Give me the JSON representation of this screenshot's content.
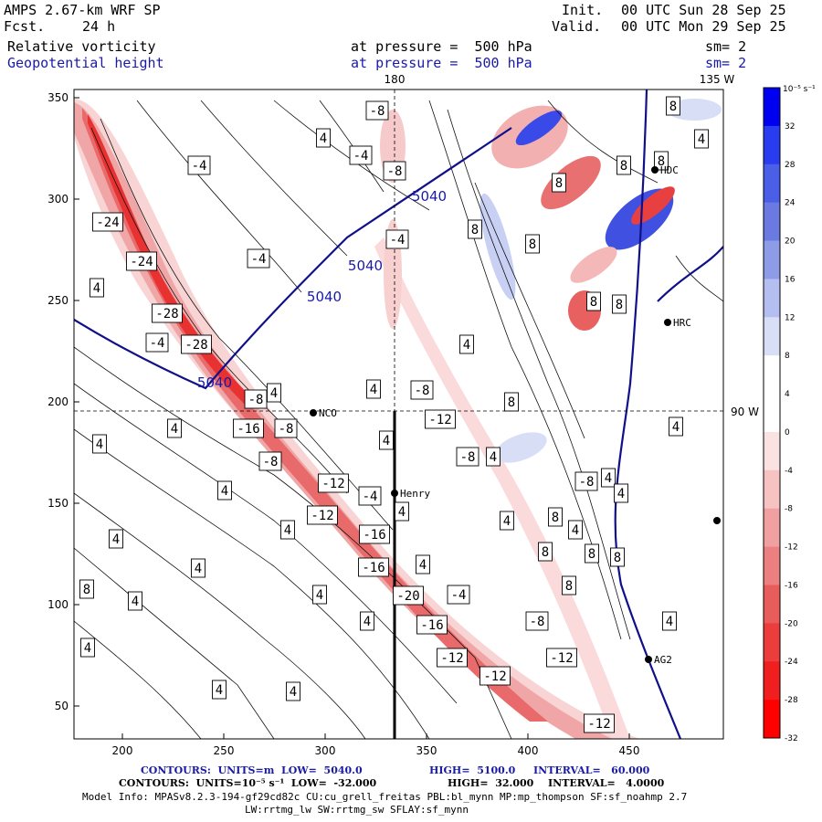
{
  "header": {
    "model": "AMPS 2.67-km WRF SP",
    "fcst_label": "Fcst.",
    "fcst_value": "24 h",
    "init_label": "Init.",
    "init_value": "00 UTC Sun 28 Sep 25",
    "valid_label": "Valid.",
    "valid_value": "00 UTC Mon 29 Sep 25",
    "field1": "Relative vorticity",
    "field2": "Geopotential height",
    "pressure1": "at pressure =  500 hPa",
    "pressure2": "at pressure =  500 hPa",
    "sm1": "sm= 2",
    "sm2": "sm= 2"
  },
  "map": {
    "lon_180": "180",
    "lon_135w": "135 W",
    "lat_90w": "90 W",
    "x_ticks": [
      "200",
      "250",
      "300",
      "350",
      "400",
      "450"
    ],
    "y_ticks": [
      "350",
      "300",
      "250",
      "200",
      "150",
      "100",
      "50"
    ],
    "stations": [
      {
        "name": "NCO"
      },
      {
        "name": "Henry"
      },
      {
        "name": "HRC"
      },
      {
        "name": "HDC"
      },
      {
        "name": "AG2"
      }
    ],
    "height_labels": [
      "5040",
      "5040",
      "5040",
      "5040"
    ],
    "vort_labels": [
      "-24",
      "-24",
      "-28",
      "-28",
      "-4",
      "-4",
      "-4",
      "-4",
      "-8",
      "-8",
      "-8",
      "-8",
      "-8",
      "-8",
      "-8",
      "-8",
      "-12",
      "-12",
      "-12",
      "-12",
      "-12",
      "-12",
      "-16",
      "-16",
      "-16",
      "-16",
      "-20",
      "-4",
      "-4",
      "-4",
      "-8",
      "-12",
      "4",
      "4",
      "4",
      "4",
      "4",
      "4",
      "4",
      "4",
      "4",
      "4",
      "4",
      "4",
      "4",
      "4",
      "4",
      "4",
      "4",
      "4",
      "4",
      "4",
      "4",
      "4",
      "4",
      "4",
      "4",
      "4",
      "4",
      "4",
      "8",
      "8",
      "8",
      "8",
      "8",
      "8",
      "8",
      "8",
      "8",
      "8",
      "8",
      "8",
      "8",
      "8",
      "8"
    ]
  },
  "colorbar": {
    "unit": "10⁻⁵ s⁻¹",
    "labels": [
      "32",
      "28",
      "24",
      "20",
      "16",
      "12",
      "8",
      "4",
      "0",
      "-4",
      "-8",
      "-12",
      "-16",
      "-20",
      "-24",
      "-28",
      "-32"
    ],
    "colors": [
      "#0000f0",
      "#2a3cf0",
      "#4a5ee8",
      "#6a7ae0",
      "#8e9ce8",
      "#b4bef0",
      "#d8def6",
      "#ffffff",
      "#ffffff",
      "#fbe2e2",
      "#f6c2c2",
      "#f0a0a0",
      "#ec8080",
      "#e85c5c",
      "#ec3c3c",
      "#f01e1e",
      "#ff0000"
    ]
  },
  "footer": {
    "line1_a": "CONTOURS:  UNITS=m  LOW=  5040.0",
    "line1_b": "HIGH=  5100.0",
    "line1_c": "INTERVAL=   60.000",
    "line2_a": "CONTOURS:  UNITS=10⁻⁵ s⁻¹  LOW=  -32.000",
    "line2_b": "HIGH=  32.000",
    "line2_c": "INTERVAL=   4.0000",
    "model_info": "Model Info: MPASv8.2.3-194-gf29cd82c CU:cu_grell_freitas PBL:bl_mynn MP:mp_thompson SF:sf_noahmp 2.7",
    "model_info2": "LW:rrtmg_lw SW:rrtmg_sw SFLAY:sf_mynn"
  }
}
